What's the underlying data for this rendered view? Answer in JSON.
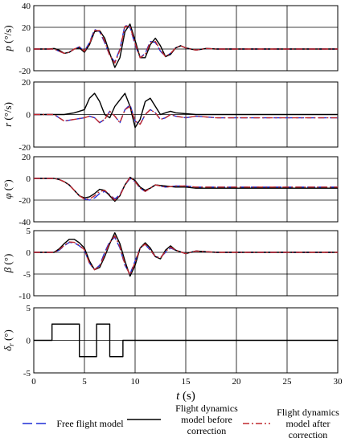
{
  "chart_data": [
    {
      "type": "line",
      "ylabel": "p (°/s)",
      "ylabel_var": "p",
      "ylabel_unit": "(°/s)",
      "ylim": [
        -20,
        40
      ],
      "yticks": [
        "40",
        "20",
        "0",
        "-20"
      ],
      "yticks_values": [
        40,
        20,
        0,
        -20
      ],
      "grid": true,
      "series": [
        {
          "x": [
            0,
            1.5,
            2,
            2.5,
            3,
            3.5,
            4,
            4.5,
            5,
            5.5,
            6,
            6.5,
            7,
            7.5,
            8,
            8.5,
            9,
            9.5,
            10,
            10.5,
            11,
            11.5,
            12,
            12.5,
            13,
            13.5,
            14,
            14.5,
            15,
            16,
            17,
            18,
            19,
            20,
            22,
            25,
            30
          ],
          "y": [
            0,
            0,
            0,
            -2,
            -4,
            -3,
            0,
            2,
            -2,
            6,
            18,
            16,
            6,
            -6,
            -12,
            0,
            22,
            20,
            4,
            -8,
            -4,
            7,
            6,
            -2,
            -7,
            -4,
            1,
            3,
            1,
            -1,
            0.5,
            0,
            0,
            0,
            0,
            0,
            0
          ]
        },
        {
          "x": [
            0,
            1.5,
            2,
            2.5,
            3,
            3.5,
            4,
            4.5,
            5,
            5.5,
            6,
            6.5,
            7,
            7.5,
            8,
            8.5,
            9,
            9.5,
            10,
            10.5,
            11,
            11.5,
            12,
            12.5,
            13,
            13.5,
            14,
            14.5,
            15,
            16,
            17,
            18,
            19,
            20,
            22,
            25,
            30
          ],
          "y": [
            0,
            0,
            0.5,
            -1,
            -4,
            -3,
            0,
            1,
            -3,
            4,
            16,
            17,
            10,
            -4,
            -17,
            -8,
            16,
            23,
            8,
            -8,
            -8,
            4,
            10,
            3,
            -7,
            -5,
            1,
            3,
            1,
            -1,
            0.5,
            0,
            0,
            0,
            0,
            0,
            0
          ]
        },
        {
          "x": [
            0,
            1.5,
            2,
            2.5,
            3,
            3.5,
            4,
            4.5,
            5,
            5.5,
            6,
            6.5,
            7,
            7.5,
            8,
            8.5,
            9,
            9.5,
            10,
            10.5,
            11,
            11.5,
            12,
            12.5,
            13,
            13.5,
            14,
            14.5,
            15,
            16,
            17,
            18,
            19,
            20,
            22,
            25,
            30
          ],
          "y": [
            0,
            0,
            0,
            -2,
            -4,
            -3,
            0,
            2,
            -2,
            5,
            17,
            17,
            7,
            -6,
            -13,
            -1,
            21,
            21,
            5,
            -8,
            -5,
            6,
            7,
            -1,
            -7,
            -4,
            1,
            3,
            1,
            -1,
            0.5,
            0,
            0,
            0,
            0,
            0,
            0
          ]
        }
      ]
    },
    {
      "type": "line",
      "ylabel": "r (°/s)",
      "ylabel_var": "r",
      "ylabel_unit": "(°/s)",
      "ylim": [
        -20,
        20
      ],
      "yticks": [
        "20",
        "0",
        "-20"
      ],
      "yticks_values": [
        20,
        0,
        -20
      ],
      "grid": true,
      "series": [
        {
          "x": [
            0,
            1.5,
            2,
            2.5,
            3,
            4,
            5,
            5.5,
            6,
            6.5,
            7,
            7.5,
            8,
            8.5,
            9,
            9.5,
            10,
            10.5,
            11,
            11.5,
            12,
            12.5,
            13,
            13.5,
            14,
            15,
            16,
            18,
            20,
            25,
            30
          ],
          "y": [
            0,
            0,
            0,
            -2,
            -4,
            -3,
            -2,
            -1,
            -2,
            -5,
            -3,
            2,
            -1,
            -5,
            3,
            6,
            -4,
            -6,
            0,
            3,
            1,
            -3,
            -2,
            0,
            -1,
            -2,
            -1,
            -2,
            -2,
            -2,
            -2
          ]
        },
        {
          "x": [
            0,
            1.5,
            2,
            2.5,
            3,
            4,
            5,
            5.5,
            6,
            6.5,
            7,
            7.5,
            8,
            8.5,
            9,
            9.5,
            10,
            10.5,
            11,
            11.5,
            12,
            12.5,
            13,
            13.5,
            14,
            15,
            16,
            18,
            20,
            25,
            30
          ],
          "y": [
            0,
            0,
            0,
            0,
            0,
            1,
            3,
            10,
            13,
            8,
            0,
            -2,
            5,
            9,
            13,
            5,
            -8,
            -3,
            8,
            10,
            5,
            0,
            1,
            2,
            1,
            0.5,
            0,
            0,
            0,
            0,
            0
          ]
        },
        {
          "x": [
            0,
            1.5,
            2,
            2.5,
            3,
            4,
            5,
            5.5,
            6,
            6.5,
            7,
            7.5,
            8,
            8.5,
            9,
            9.5,
            10,
            10.5,
            11,
            11.5,
            12,
            12.5,
            13,
            13.5,
            14,
            15,
            16,
            18,
            20,
            25,
            30
          ],
          "y": [
            0,
            0,
            0,
            -2,
            -4,
            -3,
            -2,
            -1,
            -2,
            -5,
            -3,
            2,
            -1,
            -5,
            3,
            5,
            -4,
            -6,
            0,
            3,
            1,
            -3,
            -2,
            0,
            -1,
            -2,
            -1,
            -2,
            -2,
            -2,
            -2
          ]
        }
      ]
    },
    {
      "type": "line",
      "ylabel": "φ (°)",
      "ylabel_var": "φ",
      "ylabel_unit": "(°)",
      "ylim": [
        -40,
        20
      ],
      "yticks": [
        "20",
        "0",
        "-20",
        "-40"
      ],
      "yticks_values": [
        20,
        0,
        -20,
        -40
      ],
      "grid": true,
      "series": [
        {
          "x": [
            0,
            2,
            2.5,
            3,
            3.5,
            4,
            4.5,
            5,
            5.5,
            6,
            6.5,
            7,
            7.5,
            8,
            8.5,
            9,
            9.5,
            10,
            10.5,
            11,
            11.5,
            12,
            13,
            14,
            15,
            16,
            18,
            20,
            25,
            30
          ],
          "y": [
            0,
            0,
            -1,
            -3,
            -6,
            -11,
            -16,
            -19,
            -20,
            -18,
            -14,
            -12,
            -15,
            -19,
            -15,
            -6,
            0,
            -3,
            -9,
            -12,
            -9,
            -6,
            -8,
            -7,
            -7,
            -8,
            -8,
            -8,
            -8,
            -8
          ]
        },
        {
          "x": [
            0,
            2,
            2.5,
            3,
            3.5,
            4,
            4.5,
            5,
            5.5,
            6,
            6.5,
            7,
            7.5,
            8,
            8.5,
            9,
            9.5,
            10,
            10.5,
            11,
            11.5,
            12,
            13,
            14,
            15,
            16,
            18,
            20,
            25,
            30
          ],
          "y": [
            0,
            0,
            -1,
            -3,
            -6,
            -11,
            -16,
            -18,
            -17,
            -14,
            -10,
            -11,
            -16,
            -21,
            -16,
            -6,
            1,
            -2,
            -8,
            -11,
            -9,
            -6,
            -7,
            -8,
            -8,
            -9,
            -9,
            -9,
            -9,
            -9
          ]
        },
        {
          "x": [
            0,
            2,
            2.5,
            3,
            3.5,
            4,
            4.5,
            5,
            5.5,
            6,
            6.5,
            7,
            7.5,
            8,
            8.5,
            9,
            9.5,
            10,
            10.5,
            11,
            11.5,
            12,
            13,
            14,
            15,
            16,
            18,
            20,
            25,
            30
          ],
          "y": [
            0,
            0,
            -1,
            -3,
            -6,
            -11,
            -16,
            -19,
            -19,
            -16,
            -12,
            -11,
            -15,
            -20,
            -16,
            -6,
            1,
            -3,
            -9,
            -12,
            -9,
            -6,
            -8,
            -7,
            -7,
            -8,
            -8,
            -8,
            -8,
            -8
          ]
        }
      ]
    },
    {
      "type": "line",
      "ylabel": "β (°)",
      "ylabel_var": "β",
      "ylabel_unit": "(°)",
      "ylim": [
        -10,
        5
      ],
      "yticks": [
        "5",
        "0",
        "-5",
        "-10"
      ],
      "yticks_values": [
        5,
        0,
        -5,
        -10
      ],
      "grid": true,
      "series": [
        {
          "x": [
            0,
            2,
            2.5,
            3,
            3.5,
            4,
            4.5,
            5,
            5.5,
            6,
            6.5,
            7,
            7.5,
            8,
            8.5,
            9,
            9.5,
            10,
            10.5,
            11,
            11.5,
            12,
            12.5,
            13,
            13.5,
            14,
            15,
            16,
            18,
            20,
            25,
            30
          ],
          "y": [
            0,
            0,
            0.5,
            1.5,
            2.3,
            2.2,
            1.5,
            0.5,
            -2.5,
            -4,
            -3,
            0,
            2.5,
            3.5,
            1,
            -3,
            -5,
            -2,
            1,
            1.8,
            0.5,
            -1,
            -1.2,
            0,
            1,
            0.5,
            -0.3,
            0.3,
            0,
            0,
            0,
            0
          ]
        },
        {
          "x": [
            0,
            2,
            2.5,
            3,
            3.5,
            4,
            4.5,
            5,
            5.5,
            6,
            6.5,
            7,
            7.5,
            8,
            8.5,
            9,
            9.5,
            10,
            10.5,
            11,
            11.5,
            12,
            12.5,
            13,
            13.5,
            14,
            15,
            16,
            18,
            20,
            25,
            30
          ],
          "y": [
            0,
            0,
            0.8,
            2,
            3,
            3,
            2.2,
            1,
            -2,
            -4,
            -3.5,
            -1,
            2,
            4.5,
            2,
            -2,
            -5.5,
            -3,
            1,
            2.2,
            1,
            -1,
            -1.5,
            0.5,
            1.5,
            0.5,
            -0.3,
            0.3,
            0,
            0,
            0,
            0
          ]
        },
        {
          "x": [
            0,
            2,
            2.5,
            3,
            3.5,
            4,
            4.5,
            5,
            5.5,
            6,
            6.5,
            7,
            7.5,
            8,
            8.5,
            9,
            9.5,
            10,
            10.5,
            11,
            11.5,
            12,
            12.5,
            13,
            13.5,
            14,
            15,
            16,
            18,
            20,
            25,
            30
          ],
          "y": [
            0,
            0,
            0.6,
            1.6,
            2.4,
            2.3,
            1.6,
            0.6,
            -2.5,
            -4,
            -3.2,
            -0.5,
            2.3,
            3.8,
            1.3,
            -2.8,
            -5.2,
            -2.3,
            1,
            1.9,
            0.6,
            -1,
            -1.3,
            0.2,
            1.2,
            0.5,
            -0.3,
            0.3,
            0,
            0,
            0,
            0
          ]
        }
      ]
    },
    {
      "type": "line",
      "ylabel": "δr (°)",
      "ylabel_var": "δ",
      "ylabel_sub": "r",
      "ylabel_unit": "(°)",
      "ylim": [
        -5,
        5
      ],
      "yticks": [
        "5",
        "0",
        "-5"
      ],
      "yticks_values": [
        5,
        0,
        -5
      ],
      "xlim": [
        0,
        30
      ],
      "xticks": [
        "0",
        "5",
        "10",
        "15",
        "20",
        "25",
        "30"
      ],
      "xticks_values": [
        0,
        5,
        10,
        15,
        20,
        25,
        30
      ],
      "grid": true,
      "series": [
        {
          "x": [
            0,
            1.8,
            1.8,
            4.5,
            4.5,
            6.2,
            6.2,
            6.7,
            6.7,
            7.5,
            7.5,
            8.2,
            8.2,
            8.8,
            8.8,
            30
          ],
          "y": [
            0,
            0,
            2.5,
            2.5,
            -2.5,
            -2.5,
            2.5,
            2.5,
            2.5,
            2.5,
            -2.5,
            -2.5,
            -2.5,
            -2.5,
            0,
            0
          ]
        }
      ]
    }
  ],
  "xaxis": {
    "var": "t",
    "unit": "(s)"
  },
  "legend": {
    "placement": "bottom",
    "items": [
      {
        "lines": [
          "Free flight model"
        ],
        "color": "#1f2fd6",
        "dash": "12,5"
      },
      {
        "lines": [
          "Flight dynamics",
          "model before",
          "correction"
        ],
        "color": "#000000",
        "dash": ""
      },
      {
        "lines": [
          "Flight dynamics",
          "model after",
          "correction"
        ],
        "color": "#c0282e",
        "dash": "8,3,2,3"
      }
    ]
  },
  "series_styles": [
    {
      "color": "#1f2fd6",
      "dash": "10,4"
    },
    {
      "color": "#000000",
      "dash": ""
    },
    {
      "color": "#c0282e",
      "dash": "8,3,2,3"
    }
  ]
}
